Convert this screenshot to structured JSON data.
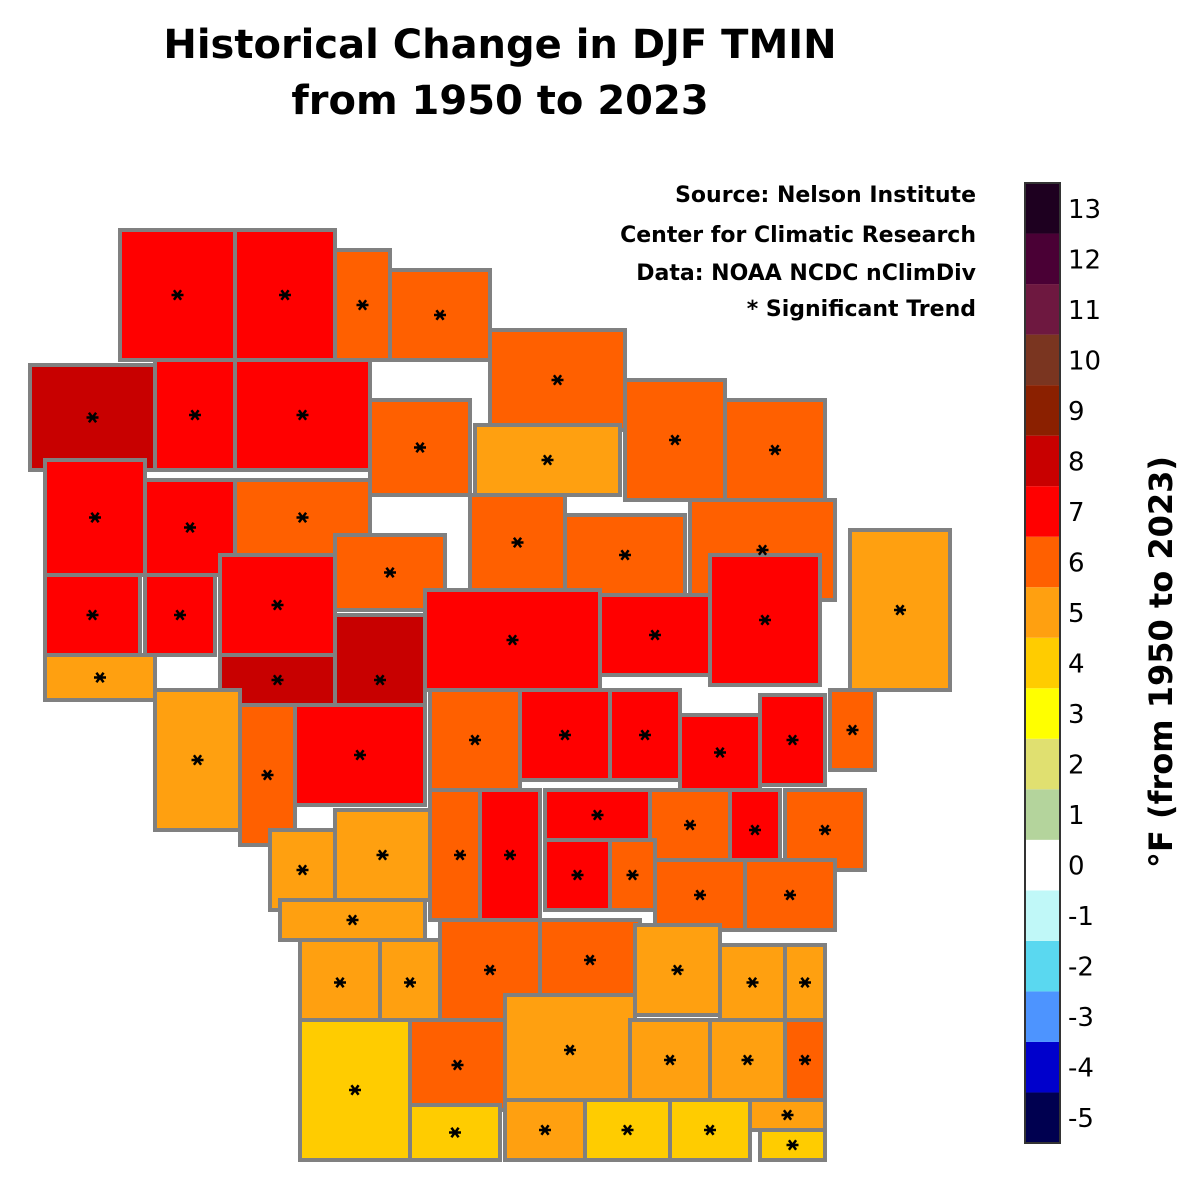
{
  "map": {
    "title": [
      "Historical Change in DJF TMIN",
      "from 1950 to 2023"
    ],
    "notes": [
      "Source:  Nelson Institute",
      "Center for Climatic Research",
      "Data: NOAA NCDC nClimDiv",
      "*  Significant Trend"
    ],
    "colorbar": {
      "label": "°F (from 1950 to 2023)",
      "ticks": [
        -5,
        -4,
        -3,
        -2,
        -1,
        0,
        1,
        2,
        3,
        4,
        5,
        6,
        7,
        8,
        9,
        10,
        11,
        12,
        13
      ],
      "colors": [
        "#000050",
        "#0000cc",
        "#4d94ff",
        "#5ad8f0",
        "#c0f8f8",
        "#ffffff",
        "#b4d49c",
        "#e0e070",
        "#ffff00",
        "#ffcc00",
        "#ffa010",
        "#ff6000",
        "#ff0000",
        "#c80000",
        "#8b2000",
        "#7a3520",
        "#6e1840",
        "#4a0035",
        "#1e0020"
      ]
    },
    "counties": {
      "values": [
        7,
        7,
        6,
        6,
        8,
        7,
        7,
        6,
        6,
        5,
        6,
        6,
        7,
        7,
        6,
        6,
        6,
        6,
        6,
        7,
        7,
        7,
        8,
        7,
        7,
        7,
        5,
        8,
        5,
        6,
        7,
        6,
        7,
        7,
        7,
        7,
        6,
        5,
        5,
        5,
        6,
        7,
        7,
        6,
        7,
        6,
        7,
        6,
        6,
        6,
        5,
        5,
        5,
        6,
        6,
        5,
        5,
        5,
        4,
        6,
        5,
        5,
        5,
        6,
        4,
        5,
        4,
        4,
        5,
        4
      ],
      "significant": [
        true,
        true,
        true,
        true,
        true,
        true,
        true,
        true,
        true,
        true,
        true,
        true,
        true,
        true,
        true,
        true,
        true,
        true,
        true,
        true,
        true,
        true,
        true,
        true,
        true,
        true,
        true,
        true,
        true,
        true,
        true,
        true,
        true,
        true,
        true,
        true,
        true,
        true,
        true,
        true,
        true,
        true,
        true,
        true,
        true,
        true,
        true,
        true,
        true,
        true,
        true,
        true,
        true,
        true,
        true,
        true,
        true,
        true,
        true,
        true,
        true,
        true,
        true,
        true,
        true,
        true,
        true,
        true,
        true,
        true
      ]
    }
  }
}
